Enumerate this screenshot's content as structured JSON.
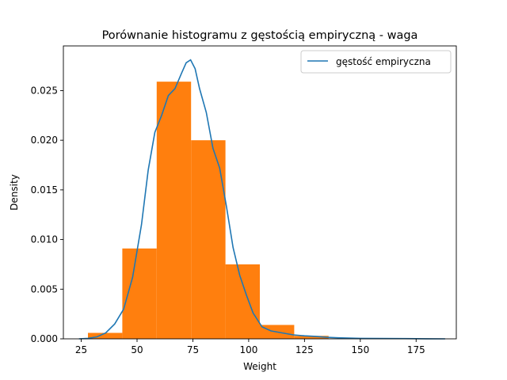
{
  "chart_data": {
    "type": "bar",
    "title": "Porównanie histogramu z gęstością empiryczną - waga",
    "xlabel": "Weight",
    "ylabel": "Density",
    "xlim": [
      17.0,
      193.0
    ],
    "ylim": [
      0.0,
      0.0295
    ],
    "x_ticks": [
      "25",
      "50",
      "75",
      "100",
      "125",
      "150",
      "175"
    ],
    "y_ticks": [
      "0.000",
      "0.005",
      "0.010",
      "0.015",
      "0.020",
      "0.025"
    ],
    "grid": false,
    "legend": {
      "position": "top-right",
      "entries": [
        "gęstość empiryczna"
      ]
    },
    "colors": {
      "histogram": "#ff7f0e",
      "density": "#1f77b4"
    },
    "histogram": {
      "bin_edges": [
        28,
        43.4,
        58.8,
        74.2,
        89.6,
        105.0,
        120.4,
        135.8,
        151.2,
        166.6,
        182.0
      ],
      "values": [
        0.0006,
        0.0091,
        0.0259,
        0.02,
        0.0075,
        0.0014,
        0.0003,
        5e-05,
        2e-05,
        1e-05
      ]
    },
    "series": [
      {
        "name": "gęstość empiryczna",
        "type": "line",
        "x": [
          24,
          28,
          32,
          36,
          40,
          44,
          48,
          52,
          55,
          58,
          61,
          64,
          67,
          70,
          72,
          74,
          76,
          78,
          81,
          84,
          87,
          90,
          93,
          96,
          99,
          102,
          106,
          110,
          115,
          120,
          125,
          130,
          135,
          140,
          150,
          160,
          170,
          180,
          188
        ],
        "values": [
          0.0,
          5e-05,
          0.0002,
          0.0006,
          0.0015,
          0.003,
          0.0062,
          0.0115,
          0.017,
          0.0208,
          0.0225,
          0.0245,
          0.0252,
          0.0268,
          0.0278,
          0.0281,
          0.0272,
          0.0252,
          0.0228,
          0.0192,
          0.0172,
          0.0134,
          0.0092,
          0.0064,
          0.0044,
          0.0026,
          0.0012,
          0.0008,
          0.0006,
          0.0004,
          0.0003,
          0.00025,
          0.00015,
          0.0001,
          5e-05,
          3e-05,
          2e-05,
          1e-05,
          0.0
        ]
      }
    ]
  }
}
